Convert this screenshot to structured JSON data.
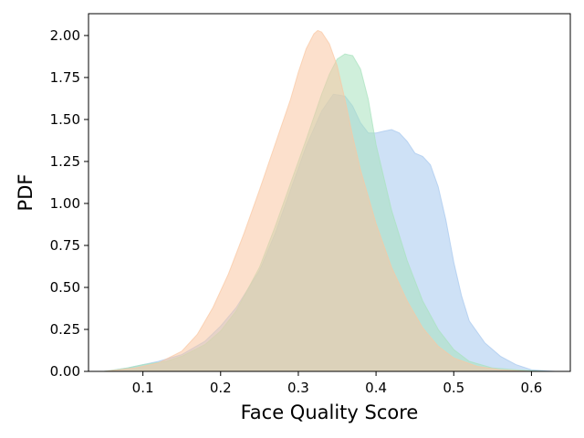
{
  "chart_data": {
    "type": "area",
    "title": "",
    "xlabel": "Face Quality Score",
    "ylabel": "PDF",
    "xlim": [
      0.03,
      0.65
    ],
    "ylim": [
      0,
      2.13
    ],
    "x_ticks": [
      0.1,
      0.2,
      0.3,
      0.4,
      0.5,
      0.6
    ],
    "y_ticks": [
      0.0,
      0.25,
      0.5,
      0.75,
      1.0,
      1.25,
      1.5,
      1.75,
      2.0
    ],
    "x_tick_labels": [
      "0.1",
      "0.2",
      "0.3",
      "0.4",
      "0.5",
      "0.6"
    ],
    "y_tick_labels": [
      "0.00",
      "0.25",
      "0.50",
      "0.75",
      "1.00",
      "1.25",
      "1.50",
      "1.75",
      "2.00"
    ],
    "grid": false,
    "legend": "none",
    "series": [
      {
        "color": "#a6c8ee",
        "x": [
          0.05,
          0.08,
          0.1,
          0.12,
          0.15,
          0.18,
          0.2,
          0.22,
          0.25,
          0.27,
          0.29,
          0.31,
          0.33,
          0.345,
          0.36,
          0.37,
          0.38,
          0.39,
          0.4,
          0.41,
          0.42,
          0.43,
          0.44,
          0.45,
          0.46,
          0.47,
          0.48,
          0.49,
          0.5,
          0.51,
          0.52,
          0.54,
          0.56,
          0.58,
          0.6,
          0.63
        ],
        "y": [
          0.0,
          0.02,
          0.04,
          0.06,
          0.1,
          0.18,
          0.27,
          0.38,
          0.6,
          0.82,
          1.08,
          1.34,
          1.55,
          1.65,
          1.64,
          1.58,
          1.48,
          1.42,
          1.42,
          1.43,
          1.44,
          1.42,
          1.37,
          1.3,
          1.28,
          1.23,
          1.1,
          0.9,
          0.65,
          0.45,
          0.3,
          0.17,
          0.09,
          0.04,
          0.01,
          0.0
        ]
      },
      {
        "color": "#a8e2bd",
        "x": [
          0.05,
          0.08,
          0.1,
          0.13,
          0.15,
          0.18,
          0.2,
          0.22,
          0.25,
          0.27,
          0.29,
          0.31,
          0.33,
          0.34,
          0.35,
          0.36,
          0.37,
          0.38,
          0.39,
          0.4,
          0.42,
          0.44,
          0.46,
          0.48,
          0.5,
          0.52,
          0.55,
          0.58,
          0.62
        ],
        "y": [
          0.0,
          0.02,
          0.04,
          0.06,
          0.09,
          0.16,
          0.24,
          0.36,
          0.62,
          0.86,
          1.12,
          1.38,
          1.65,
          1.77,
          1.86,
          1.89,
          1.88,
          1.8,
          1.62,
          1.35,
          0.96,
          0.66,
          0.42,
          0.25,
          0.13,
          0.06,
          0.02,
          0.01,
          0.0
        ]
      },
      {
        "color": "#fac7a2",
        "x": [
          0.05,
          0.09,
          0.12,
          0.15,
          0.17,
          0.19,
          0.21,
          0.23,
          0.25,
          0.27,
          0.29,
          0.3,
          0.31,
          0.32,
          0.325,
          0.33,
          0.34,
          0.35,
          0.36,
          0.37,
          0.38,
          0.4,
          0.42,
          0.44,
          0.46,
          0.48,
          0.5,
          0.53,
          0.56,
          0.6
        ],
        "y": [
          0.0,
          0.02,
          0.05,
          0.12,
          0.22,
          0.38,
          0.58,
          0.82,
          1.08,
          1.35,
          1.62,
          1.78,
          1.92,
          2.01,
          2.03,
          2.02,
          1.95,
          1.82,
          1.62,
          1.4,
          1.2,
          0.88,
          0.62,
          0.42,
          0.26,
          0.15,
          0.08,
          0.03,
          0.01,
          0.0
        ]
      }
    ]
  }
}
